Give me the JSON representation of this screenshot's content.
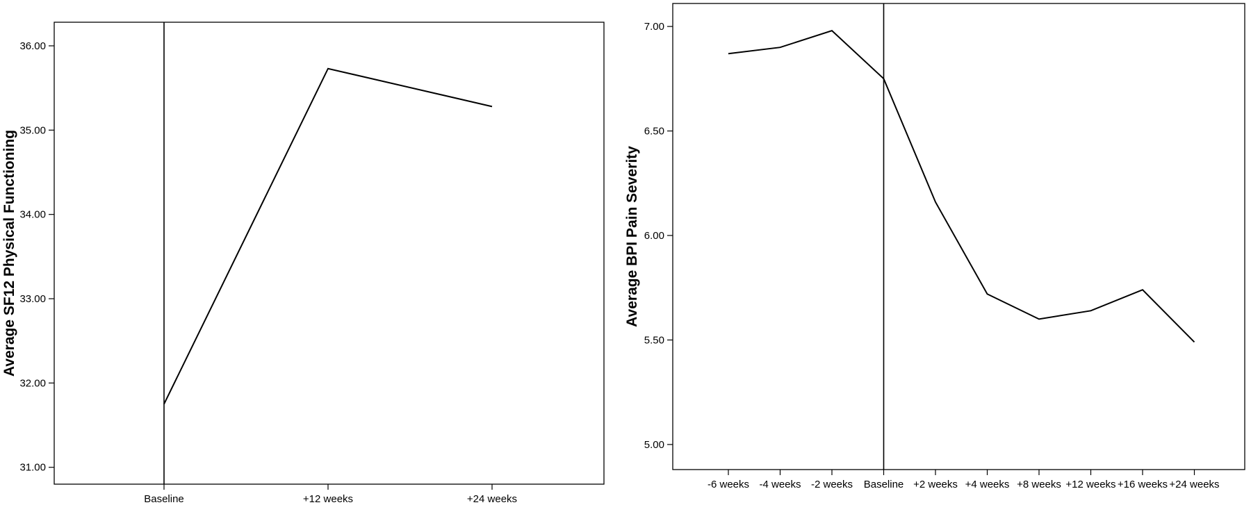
{
  "chart_data": [
    {
      "type": "line",
      "title": "",
      "xlabel": "",
      "ylabel": "Average SF12 Physical Functioning",
      "categories": [
        "Baseline",
        "+12 weeks",
        "+24 weeks"
      ],
      "values": [
        31.75,
        35.73,
        35.28
      ],
      "yticks": [
        "31.00",
        "32.00",
        "33.00",
        "34.00",
        "35.00",
        "36.00"
      ],
      "ylim": [
        30.8,
        36.28
      ],
      "reference_line_at": "Baseline",
      "grid": false,
      "line_color": "#000000"
    },
    {
      "type": "line",
      "title": "",
      "xlabel": "",
      "ylabel": "Average BPI Pain Severity",
      "categories": [
        "-6 weeks",
        "-4 weeks",
        "-2 weeks",
        "Baseline",
        "+2 weeks",
        "+4 weeks",
        "+8 weeks",
        "+12 weeks",
        "+16 weeks",
        "+24 weeks"
      ],
      "values": [
        6.87,
        6.9,
        6.98,
        6.75,
        6.16,
        5.72,
        5.6,
        5.64,
        5.74,
        5.49
      ],
      "yticks": [
        "5.00",
        "5.50",
        "6.00",
        "6.50",
        "7.00"
      ],
      "ylim": [
        4.88,
        7.11
      ],
      "reference_line_at": "Baseline",
      "grid": false,
      "line_color": "#000000"
    }
  ]
}
